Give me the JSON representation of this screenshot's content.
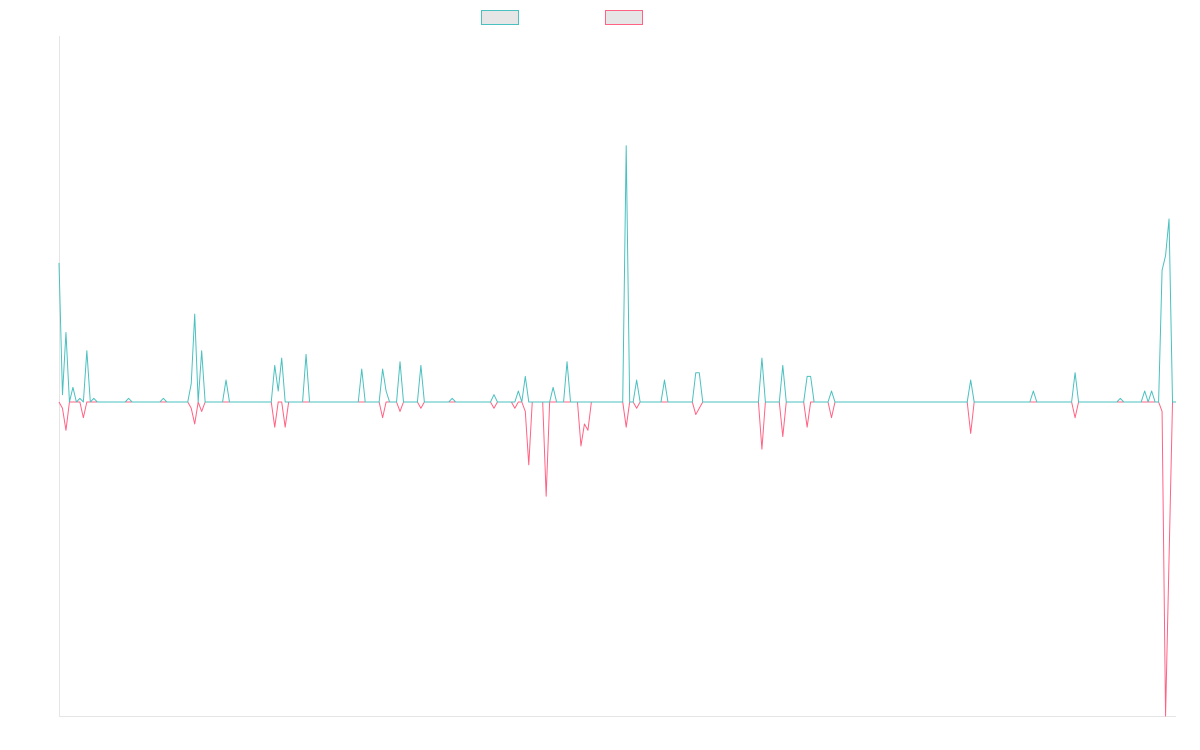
{
  "chart_data": {
    "type": "line",
    "title": "",
    "xlabel": "",
    "ylabel": "",
    "legend_position": "top-center",
    "grid": false,
    "x_count": 322,
    "ylim": [
      -1,
      1
    ],
    "series": [
      {
        "name": "",
        "color": "#4bc0c0",
        "fill": "#e6e6e6",
        "points": [
          [
            0,
            0.38
          ],
          [
            1,
            0.02
          ],
          [
            2,
            0.19
          ],
          [
            3,
            0.0
          ],
          [
            4,
            0.04
          ],
          [
            5,
            0.0
          ],
          [
            6,
            0.01
          ],
          [
            7,
            0.0
          ],
          [
            8,
            0.14
          ],
          [
            9,
            0.0
          ],
          [
            10,
            0.01
          ],
          [
            11,
            0.0
          ],
          [
            20,
            0.01
          ],
          [
            21,
            0.0
          ],
          [
            30,
            0.01
          ],
          [
            31,
            0.0
          ],
          [
            38,
            0.05
          ],
          [
            39,
            0.24
          ],
          [
            40,
            0.0
          ],
          [
            41,
            0.14
          ],
          [
            42,
            0.0
          ],
          [
            48,
            0.06
          ],
          [
            49,
            0.0
          ],
          [
            62,
            0.1
          ],
          [
            63,
            0.03
          ],
          [
            64,
            0.12
          ],
          [
            65,
            0.0
          ],
          [
            71,
            0.13
          ],
          [
            72,
            0.0
          ],
          [
            87,
            0.09
          ],
          [
            88,
            0.0
          ],
          [
            93,
            0.09
          ],
          [
            94,
            0.03
          ],
          [
            95,
            0.0
          ],
          [
            98,
            0.11
          ],
          [
            99,
            0.0
          ],
          [
            104,
            0.1
          ],
          [
            105,
            0.0
          ],
          [
            113,
            0.01
          ],
          [
            114,
            0.0
          ],
          [
            125,
            0.02
          ],
          [
            126,
            0.0
          ],
          [
            132,
            0.03
          ],
          [
            133,
            0.0
          ],
          [
            134,
            0.07
          ],
          [
            135,
            0.0
          ],
          [
            142,
            0.04
          ],
          [
            143,
            0.0
          ],
          [
            146,
            0.11
          ],
          [
            147,
            0.0
          ],
          [
            163,
            0.7
          ],
          [
            164,
            0.0
          ],
          [
            166,
            0.06
          ],
          [
            167,
            0.0
          ],
          [
            174,
            0.06
          ],
          [
            175,
            0.0
          ],
          [
            183,
            0.08
          ],
          [
            184,
            0.08
          ],
          [
            185,
            0.0
          ],
          [
            202,
            0.12
          ],
          [
            203,
            0.0
          ],
          [
            208,
            0.1
          ],
          [
            209,
            0.0
          ],
          [
            215,
            0.07
          ],
          [
            216,
            0.07
          ],
          [
            217,
            0.0
          ],
          [
            222,
            0.03
          ],
          [
            223,
            0.0
          ],
          [
            262,
            0.06
          ],
          [
            263,
            0.0
          ],
          [
            280,
            0.03
          ],
          [
            281,
            0.0
          ],
          [
            292,
            0.08
          ],
          [
            293,
            0.0
          ],
          [
            304,
            0.0
          ],
          [
            305,
            0.01
          ],
          [
            306,
            0.0
          ],
          [
            311,
            0.0
          ],
          [
            312,
            0.03
          ],
          [
            314,
            0.03
          ],
          [
            315,
            0.0
          ],
          [
            316,
            0.0
          ],
          [
            317,
            0.36
          ],
          [
            318,
            0.4
          ],
          [
            319,
            0.5
          ],
          [
            320,
            0.0
          ]
        ]
      },
      {
        "name": "",
        "color": "#ff6384",
        "fill": "#e6e6e6",
        "points": [
          [
            0,
            0.0
          ],
          [
            1,
            -0.02
          ],
          [
            2,
            -0.09
          ],
          [
            3,
            0.0
          ],
          [
            7,
            -0.05
          ],
          [
            8,
            0.0
          ],
          [
            38,
            -0.02
          ],
          [
            39,
            -0.07
          ],
          [
            40,
            0.0
          ],
          [
            41,
            -0.03
          ],
          [
            42,
            0.0
          ],
          [
            62,
            -0.08
          ],
          [
            63,
            0.0
          ],
          [
            65,
            -0.08
          ],
          [
            66,
            0.0
          ],
          [
            93,
            -0.05
          ],
          [
            94,
            0.0
          ],
          [
            98,
            -0.03
          ],
          [
            99,
            0.0
          ],
          [
            104,
            -0.02
          ],
          [
            105,
            0.0
          ],
          [
            125,
            -0.02
          ],
          [
            126,
            0.0
          ],
          [
            131,
            -0.02
          ],
          [
            132,
            0.0
          ],
          [
            134,
            -0.03
          ],
          [
            135,
            -0.2
          ],
          [
            136,
            0.0
          ],
          [
            140,
            -0.3
          ],
          [
            141,
            0.0
          ],
          [
            150,
            -0.14
          ],
          [
            151,
            -0.07
          ],
          [
            152,
            -0.09
          ],
          [
            153,
            0.0
          ],
          [
            163,
            -0.08
          ],
          [
            164,
            0.0
          ],
          [
            166,
            -0.02
          ],
          [
            167,
            0.0
          ],
          [
            183,
            -0.04
          ],
          [
            184,
            -0.02
          ],
          [
            185,
            0.0
          ],
          [
            202,
            -0.15
          ],
          [
            203,
            0.0
          ],
          [
            208,
            -0.11
          ],
          [
            209,
            0.0
          ],
          [
            215,
            -0.08
          ],
          [
            216,
            0.0
          ],
          [
            222,
            -0.05
          ],
          [
            223,
            0.0
          ],
          [
            262,
            -0.1
          ],
          [
            263,
            0.0
          ],
          [
            292,
            -0.05
          ],
          [
            293,
            0.0
          ],
          [
            317,
            -0.03
          ],
          [
            318,
            -1.0
          ],
          [
            319,
            -0.5
          ],
          [
            320,
            0.0
          ]
        ]
      }
    ]
  }
}
